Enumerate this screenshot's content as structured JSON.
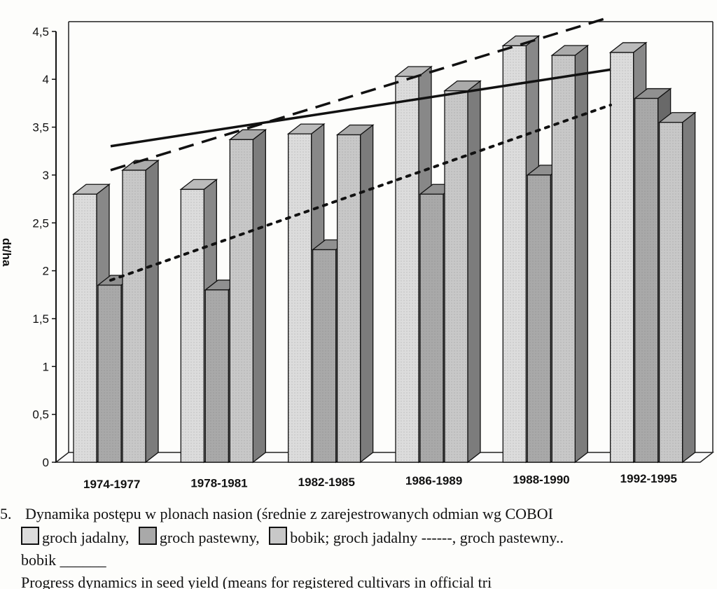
{
  "chart_data": {
    "type": "bar",
    "ylabel": "dt/ha",
    "ylim": [
      0,
      4.5
    ],
    "yticks": [
      "0",
      "0,5",
      "1",
      "1,5",
      "2",
      "2,5",
      "3",
      "3,5",
      "4",
      "4,5"
    ],
    "categories": [
      "1974-1977",
      "1978-1981",
      "1982-1985",
      "1986-1989",
      "1988-1990",
      "1992-1995"
    ],
    "series": [
      {
        "name": "groch jadalny",
        "values": [
          2.8,
          2.85,
          3.43,
          4.03,
          4.35,
          4.28
        ],
        "color": "#dcdcdc"
      },
      {
        "name": "groch pastewny",
        "values": [
          1.85,
          1.8,
          2.22,
          2.8,
          3.0,
          3.8
        ],
        "color": "#a9a9a9"
      },
      {
        "name": "bobik",
        "values": [
          3.05,
          3.37,
          3.42,
          3.88,
          4.25,
          3.55
        ],
        "color": "#c8c8c8"
      }
    ],
    "trendlines": [
      {
        "series": "groch jadalny",
        "style": "dashed",
        "start": 3.0,
        "end": 4.6
      },
      {
        "series": "groch pastewny",
        "style": "dotted",
        "start": 1.85,
        "end": 3.68
      },
      {
        "series": "bobik",
        "style": "solid",
        "start": 3.25,
        "end": 4.05
      }
    ],
    "grid": false,
    "legend": "below"
  },
  "caption": {
    "prefix": "5.",
    "line1": "Dynamika postępu w plonach nasion  (średnie z zarejestrowanych odmian wg COBOI",
    "legend_items": [
      {
        "label": "groch jadalny,",
        "color": "#dcdcdc"
      },
      {
        "label": "groch pastewny,",
        "color": "#a9a9a9"
      },
      {
        "label": "bobik; groch jadalny ------, groch pastewny..",
        "color": "#c8c8c8"
      }
    ],
    "line3": "bobik ______",
    "line4": "Progress  dynamics  in  seed  yield  (means  for  registered  cultivars  in  official  tri"
  }
}
